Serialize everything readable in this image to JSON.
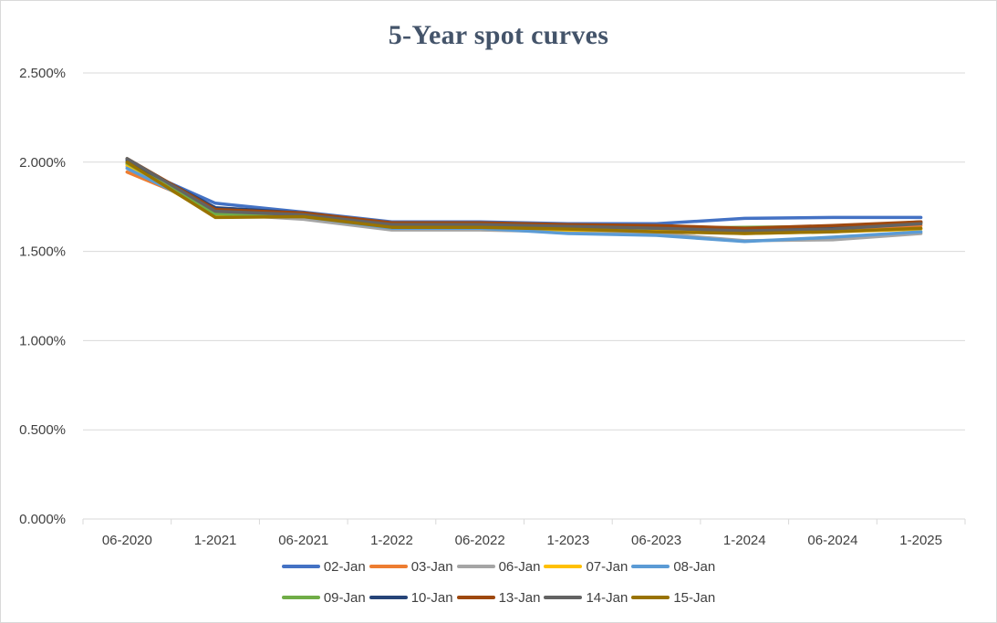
{
  "chart_data": {
    "type": "line",
    "title": "5-Year spot curves",
    "xlabel": "",
    "ylabel": "",
    "categories": [
      "06-2020",
      "1-2021",
      "06-2021",
      "1-2022",
      "06-2022",
      "1-2023",
      "06-2023",
      "1-2024",
      "06-2024",
      "1-2025"
    ],
    "y_ticks": [
      "0.000%",
      "0.500%",
      "1.000%",
      "1.500%",
      "2.000%",
      "2.500%"
    ],
    "ylim": [
      0,
      2.5
    ],
    "y_unit": "%",
    "grid": true,
    "legend_position": "bottom",
    "series": [
      {
        "name": "02-Jan",
        "color": "#4472c4",
        "values": [
          1.99,
          1.77,
          1.72,
          1.665,
          1.665,
          1.655,
          1.655,
          1.685,
          1.69,
          1.69
        ]
      },
      {
        "name": "03-Jan",
        "color": "#ed7d31",
        "values": [
          1.945,
          1.74,
          1.71,
          1.645,
          1.645,
          1.635,
          1.625,
          1.615,
          1.625,
          1.645
        ]
      },
      {
        "name": "06-Jan",
        "color": "#a5a5a5",
        "values": [
          1.975,
          1.71,
          1.68,
          1.62,
          1.62,
          1.61,
          1.6,
          1.56,
          1.565,
          1.6
        ]
      },
      {
        "name": "07-Jan",
        "color": "#ffc000",
        "values": [
          1.985,
          1.7,
          1.7,
          1.63,
          1.63,
          1.62,
          1.615,
          1.6,
          1.61,
          1.625
        ]
      },
      {
        "name": "08-Jan",
        "color": "#5b9bd5",
        "values": [
          1.965,
          1.72,
          1.695,
          1.63,
          1.63,
          1.6,
          1.59,
          1.555,
          1.58,
          1.61
        ]
      },
      {
        "name": "09-Jan",
        "color": "#70ad47",
        "values": [
          1.995,
          1.71,
          1.705,
          1.645,
          1.645,
          1.635,
          1.63,
          1.635,
          1.64,
          1.66
        ]
      },
      {
        "name": "10-Jan",
        "color": "#264478",
        "values": [
          2.01,
          1.745,
          1.715,
          1.655,
          1.655,
          1.645,
          1.64,
          1.62,
          1.635,
          1.665
        ]
      },
      {
        "name": "13-Jan",
        "color": "#9e480e",
        "values": [
          2.02,
          1.735,
          1.715,
          1.66,
          1.66,
          1.65,
          1.645,
          1.63,
          1.645,
          1.665
        ]
      },
      {
        "name": "14-Jan",
        "color": "#636363",
        "values": [
          2.02,
          1.725,
          1.705,
          1.65,
          1.65,
          1.64,
          1.63,
          1.615,
          1.625,
          1.655
        ]
      },
      {
        "name": "15-Jan",
        "color": "#997300",
        "values": [
          2.0,
          1.69,
          1.695,
          1.635,
          1.635,
          1.625,
          1.61,
          1.6,
          1.61,
          1.63
        ]
      }
    ]
  }
}
